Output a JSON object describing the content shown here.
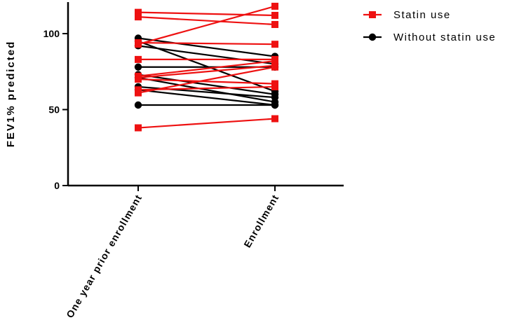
{
  "chart_data": {
    "type": "line",
    "ylabel": "FEV1% predicted",
    "xlabel": "",
    "ylim": [
      0,
      120
    ],
    "yticks": [
      0,
      50,
      100
    ],
    "categories": [
      "One year prior enrollment",
      "Enrollment"
    ],
    "legend_position": "top-right",
    "colors": {
      "statin": "#ee1111",
      "no_statin": "#000000"
    },
    "legend": [
      {
        "key": "statin",
        "label": "Statin use",
        "marker": "square"
      },
      {
        "key": "no_statin",
        "label": "Without statin use",
        "marker": "circle"
      }
    ],
    "series": [
      {
        "group": "statin",
        "values": [
          114,
          112
        ]
      },
      {
        "group": "statin",
        "values": [
          111,
          106
        ]
      },
      {
        "group": "statin",
        "values": [
          94,
          93
        ]
      },
      {
        "group": "statin",
        "values": [
          93,
          118
        ]
      },
      {
        "group": "statin",
        "values": [
          83,
          83
        ]
      },
      {
        "group": "statin",
        "values": [
          72,
          82
        ]
      },
      {
        "group": "statin",
        "values": [
          71,
          79
        ]
      },
      {
        "group": "statin",
        "values": [
          70,
          67
        ]
      },
      {
        "group": "statin",
        "values": [
          63,
          65
        ]
      },
      {
        "group": "statin",
        "values": [
          61,
          78
        ]
      },
      {
        "group": "statin",
        "values": [
          38,
          44
        ]
      },
      {
        "group": "no_statin",
        "values": [
          97,
          85
        ]
      },
      {
        "group": "no_statin",
        "values": [
          95,
          62
        ]
      },
      {
        "group": "no_statin",
        "values": [
          92,
          80
        ]
      },
      {
        "group": "no_statin",
        "values": [
          78,
          78
        ]
      },
      {
        "group": "no_statin",
        "values": [
          73,
          60
        ]
      },
      {
        "group": "no_statin",
        "values": [
          71,
          55
        ]
      },
      {
        "group": "no_statin",
        "values": [
          65,
          58
        ]
      },
      {
        "group": "no_statin",
        "values": [
          63,
          53
        ]
      },
      {
        "group": "no_statin",
        "values": [
          53,
          53
        ]
      }
    ]
  }
}
